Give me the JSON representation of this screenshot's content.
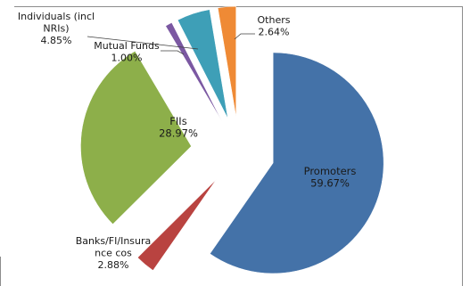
{
  "chart_data": {
    "type": "pie",
    "title": "",
    "slices": [
      {
        "label": "Promoters",
        "value": 59.67,
        "value_label": "59.67%",
        "color": "#4472a8"
      },
      {
        "label": "Banks/FI/Insura nce cos",
        "value": 2.88,
        "value_label": "2.88%",
        "color": "#b94340"
      },
      {
        "label": "FIIs",
        "value": 28.97,
        "value_label": "28.97%",
        "color": "#8daf4a"
      },
      {
        "label": "Mutual Funds",
        "value": 1.0,
        "value_label": "1.00%",
        "color": "#7b58a2"
      },
      {
        "label": "Individuals (incl NRIs)",
        "value": 4.85,
        "value_label": "4.85%",
        "color": "#3e9fb7"
      },
      {
        "label": "Others",
        "value": 2.64,
        "value_label": "2.64%",
        "color": "#ef8a35"
      }
    ],
    "label_lines": {
      "Promoters": [
        "Promoters"
      ],
      "Banks/FI/Insura nce cos": [
        "Banks/FI/Insura",
        "nce cos"
      ],
      "FIIs": [
        "FIIs"
      ],
      "Mutual Funds": [
        "Mutual Funds"
      ],
      "Individuals (incl NRIs)": [
        "Individuals (incl",
        "NRIs)"
      ],
      "Others": [
        "Others"
      ]
    }
  }
}
